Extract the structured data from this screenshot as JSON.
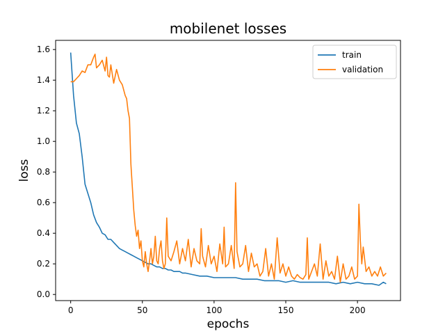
{
  "chart_data": {
    "type": "line",
    "title": "mobilenet losses",
    "xlabel": "epochs",
    "ylabel": "loss",
    "xlim": [
      -10.5,
      230
    ],
    "ylim": [
      -0.04,
      1.66
    ],
    "xticks": [
      0,
      50,
      100,
      150,
      200
    ],
    "yticks": [
      0.0,
      0.2,
      0.4,
      0.6,
      0.8,
      1.0,
      1.2,
      1.4,
      1.6
    ],
    "grid": false,
    "legend": "upper right",
    "series": [
      {
        "name": "train",
        "color": "#1f77b4",
        "x": [
          0,
          2,
          4,
          6,
          8,
          10,
          12,
          14,
          16,
          18,
          20,
          22,
          24,
          26,
          28,
          30,
          32,
          34,
          36,
          38,
          40,
          42,
          44,
          46,
          48,
          50,
          52,
          54,
          56,
          58,
          60,
          62,
          64,
          66,
          68,
          70,
          72,
          74,
          76,
          78,
          80,
          85,
          90,
          95,
          100,
          105,
          110,
          115,
          120,
          125,
          130,
          135,
          140,
          145,
          150,
          155,
          160,
          165,
          170,
          175,
          180,
          185,
          190,
          195,
          200,
          205,
          210,
          215,
          218,
          220
        ],
        "y": [
          1.58,
          1.3,
          1.12,
          1.05,
          0.9,
          0.72,
          0.66,
          0.6,
          0.52,
          0.47,
          0.44,
          0.4,
          0.39,
          0.36,
          0.36,
          0.34,
          0.32,
          0.3,
          0.29,
          0.28,
          0.27,
          0.26,
          0.25,
          0.24,
          0.23,
          0.22,
          0.21,
          0.2,
          0.2,
          0.19,
          0.18,
          0.18,
          0.17,
          0.17,
          0.16,
          0.16,
          0.15,
          0.15,
          0.15,
          0.14,
          0.14,
          0.13,
          0.12,
          0.12,
          0.11,
          0.11,
          0.11,
          0.11,
          0.1,
          0.1,
          0.1,
          0.09,
          0.09,
          0.09,
          0.08,
          0.09,
          0.08,
          0.08,
          0.08,
          0.08,
          0.08,
          0.07,
          0.08,
          0.07,
          0.08,
          0.07,
          0.07,
          0.06,
          0.08,
          0.07
        ]
      },
      {
        "name": "validation",
        "color": "#ff7f0e",
        "x": [
          0,
          2,
          4,
          6,
          8,
          10,
          12,
          14,
          16,
          17,
          18,
          20,
          22,
          24,
          25,
          26,
          27,
          28,
          30,
          32,
          34,
          36,
          38,
          39,
          40,
          41,
          42,
          43,
          44,
          45,
          46,
          47,
          48,
          49,
          50,
          51,
          52,
          53,
          54,
          55,
          56,
          57,
          58,
          59,
          60,
          61,
          62,
          63,
          64,
          65,
          66,
          67,
          68,
          70,
          72,
          74,
          76,
          78,
          80,
          82,
          84,
          86,
          88,
          90,
          91,
          92,
          94,
          96,
          98,
          100,
          102,
          104,
          106,
          107,
          108,
          110,
          112,
          114,
          115,
          116,
          118,
          120,
          122,
          124,
          126,
          128,
          130,
          132,
          134,
          136,
          138,
          140,
          142,
          144,
          146,
          148,
          150,
          152,
          154,
          156,
          158,
          160,
          162,
          164,
          165,
          166,
          168,
          170,
          172,
          174,
          176,
          178,
          180,
          182,
          184,
          186,
          188,
          190,
          192,
          194,
          196,
          198,
          200,
          201,
          202,
          203,
          204,
          206,
          208,
          210,
          212,
          214,
          216,
          218,
          220
        ],
        "y": [
          1.39,
          1.39,
          1.41,
          1.43,
          1.46,
          1.45,
          1.5,
          1.5,
          1.55,
          1.57,
          1.48,
          1.5,
          1.53,
          1.46,
          1.55,
          1.43,
          1.42,
          1.5,
          1.38,
          1.47,
          1.4,
          1.37,
          1.3,
          1.28,
          1.2,
          1.15,
          0.85,
          0.7,
          0.55,
          0.45,
          0.38,
          0.42,
          0.3,
          0.35,
          0.22,
          0.18,
          0.28,
          0.2,
          0.15,
          0.22,
          0.3,
          0.2,
          0.25,
          0.38,
          0.22,
          0.2,
          0.3,
          0.35,
          0.22,
          0.17,
          0.2,
          0.5,
          0.25,
          0.22,
          0.28,
          0.35,
          0.2,
          0.3,
          0.22,
          0.36,
          0.18,
          0.3,
          0.22,
          0.2,
          0.43,
          0.25,
          0.18,
          0.32,
          0.2,
          0.25,
          0.15,
          0.33,
          0.2,
          0.44,
          0.18,
          0.2,
          0.32,
          0.17,
          0.73,
          0.28,
          0.18,
          0.2,
          0.32,
          0.15,
          0.27,
          0.18,
          0.2,
          0.12,
          0.15,
          0.3,
          0.12,
          0.2,
          0.1,
          0.37,
          0.14,
          0.2,
          0.12,
          0.18,
          0.12,
          0.1,
          0.13,
          0.11,
          0.1,
          0.13,
          0.37,
          0.1,
          0.15,
          0.2,
          0.12,
          0.33,
          0.1,
          0.22,
          0.12,
          0.15,
          0.1,
          0.25,
          0.08,
          0.2,
          0.1,
          0.12,
          0.18,
          0.1,
          0.12,
          0.59,
          0.35,
          0.2,
          0.31,
          0.15,
          0.18,
          0.12,
          0.15,
          0.12,
          0.18,
          0.12,
          0.14
        ]
      }
    ]
  }
}
